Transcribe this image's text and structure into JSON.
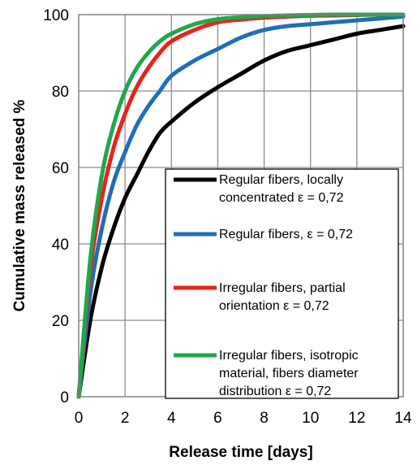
{
  "chart_data": {
    "type": "line",
    "xlabel": "Release time [days]",
    "ylabel": "Cumulative mass released %",
    "xlim": [
      0,
      14
    ],
    "ylim": [
      0,
      100
    ],
    "xticks": [
      "0",
      "2",
      "4",
      "6",
      "8",
      "10",
      "12",
      "14"
    ],
    "yticks": [
      "0",
      "20",
      "40",
      "60",
      "80",
      "100"
    ],
    "grid": true,
    "legend_position": "lower-right",
    "x": [
      0,
      0.5,
      1,
      1.5,
      2,
      2.5,
      3,
      3.5,
      4,
      5,
      6,
      7,
      8,
      9,
      10,
      11,
      12,
      13,
      14
    ],
    "series": [
      {
        "name_lines": [
          "Regular fibers, locally",
          "concentrated ε = 0,72"
        ],
        "color": "#000000",
        "values": [
          0,
          20,
          34,
          44,
          52,
          58,
          64,
          69,
          72,
          77,
          81,
          84.5,
          88,
          90.5,
          92,
          93.5,
          95,
          96,
          97
        ]
      },
      {
        "name_lines": [
          "Regular fibers, ε = 0,72"
        ],
        "color": "#1f6fb8",
        "values": [
          0,
          27,
          44,
          56,
          64,
          71,
          76,
          80,
          84,
          88,
          91,
          94,
          96,
          97,
          97.5,
          98,
          98.5,
          99,
          99.5
        ]
      },
      {
        "name_lines": [
          "Irregular fibers, partial",
          "orientation ε = 0,72"
        ],
        "color": "#e8231b",
        "values": [
          0,
          33,
          52,
          65,
          74,
          81,
          86,
          90,
          93,
          96,
          98,
          98.7,
          99.2,
          99.5,
          99.7,
          99.8,
          99.9,
          100,
          100
        ]
      },
      {
        "name_lines": [
          "Irregular fibers, isotropic",
          "material, fibers diameter",
          "distribution ε = 0,72"
        ],
        "color": "#1fa84a",
        "values": [
          0,
          36,
          58,
          71,
          80,
          86,
          90,
          93,
          95,
          97.5,
          98.8,
          99.3,
          99.6,
          99.8,
          99.9,
          100,
          100,
          100,
          100
        ]
      }
    ]
  }
}
